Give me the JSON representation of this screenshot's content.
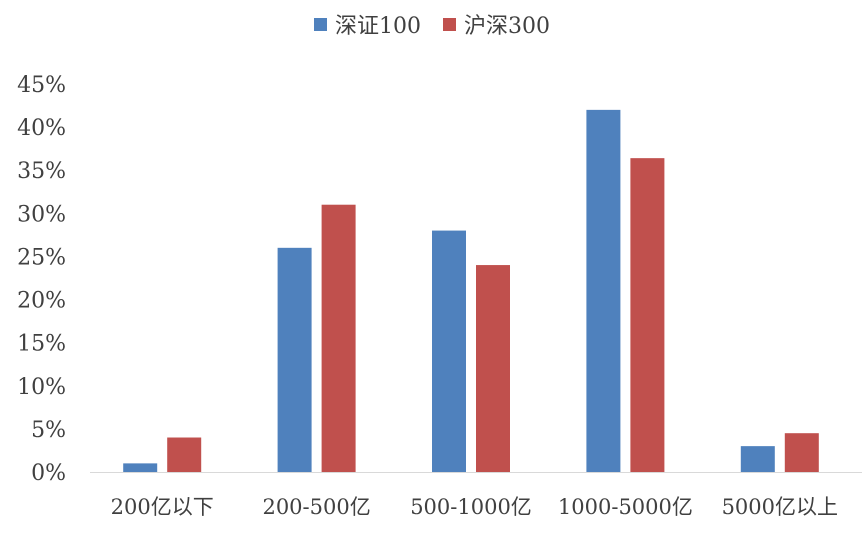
{
  "chart_data": {
    "type": "bar",
    "categories": [
      "200亿以下",
      "200-500亿",
      "500-1000亿",
      "1000-5000亿",
      "5000亿以上"
    ],
    "series": [
      {
        "name": "深证100",
        "values": [
          1.0,
          26.0,
          28.0,
          42.0,
          3.0
        ],
        "color": "#4F81BD"
      },
      {
        "name": "沪深300",
        "values": [
          4.0,
          31.0,
          24.0,
          36.4,
          4.5
        ],
        "color": "#C0504D"
      }
    ],
    "y_ticks": [
      "0%",
      "5%",
      "10%",
      "15%",
      "20%",
      "25%",
      "30%",
      "35%",
      "40%",
      "45%"
    ],
    "ylim": [
      0,
      45
    ],
    "grid": false,
    "legend_position": "top-center"
  }
}
